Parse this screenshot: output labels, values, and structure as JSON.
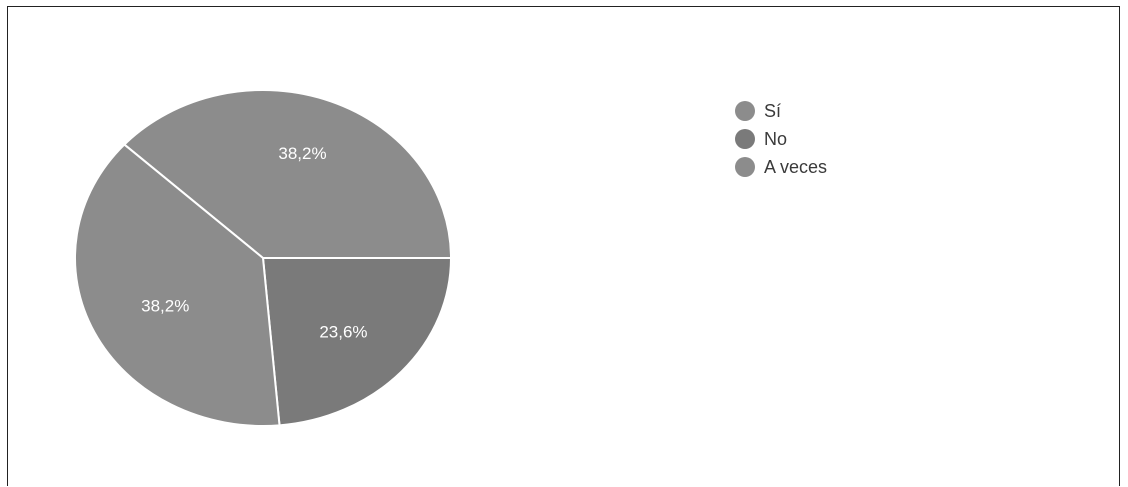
{
  "chart_data": {
    "type": "pie",
    "slices": [
      {
        "label": "Sí",
        "value": 38.2,
        "display": "38,2%",
        "color": "#8c8c8c"
      },
      {
        "label": "No",
        "value": 23.6,
        "display": "23,6%",
        "color": "#7a7a7a"
      },
      {
        "label": "A veces",
        "value": 38.2,
        "display": "38,2%",
        "color": "#8c8c8c"
      }
    ],
    "legend_position": "top-right",
    "slice_border_color": "#ffffff"
  }
}
